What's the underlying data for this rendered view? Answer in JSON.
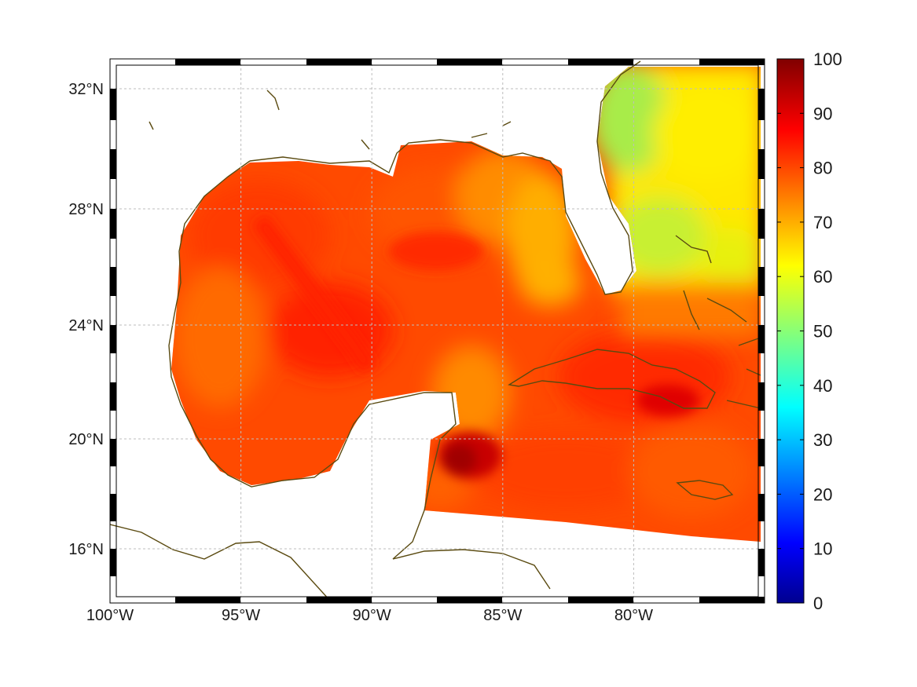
{
  "map": {
    "region": "Gulf of Mexico and western Caribbean",
    "lon_range": [
      -100,
      -75
    ],
    "lat_range": [
      14.2,
      33
    ],
    "lon_ticks": [
      {
        "value": -100,
        "label": "100°W"
      },
      {
        "value": -95,
        "label": "95°W"
      },
      {
        "value": -90,
        "label": "90°W"
      },
      {
        "value": -85,
        "label": "85°W"
      },
      {
        "value": -80,
        "label": "80°W"
      }
    ],
    "lat_ticks": [
      {
        "value": 32,
        "label": "32°N"
      },
      {
        "value": 28,
        "label": "28°N"
      },
      {
        "value": 24,
        "label": "24°N"
      },
      {
        "value": 20,
        "label": "20°N"
      },
      {
        "value": 16,
        "label": "16°N"
      }
    ],
    "grid": true,
    "coastline_color": "#5a4a10",
    "field_summary": [
      {
        "area": "Western and central Gulf of Mexico",
        "approx_value": 85
      },
      {
        "area": "Eastern Gulf / West Florida shelf",
        "approx_value": 72
      },
      {
        "area": "Yucatan Channel / Cayman Sea (max)",
        "approx_value": 97
      },
      {
        "area": "Caribbean south of Cuba",
        "approx_value": 84
      },
      {
        "area": "Atlantic east of Florida (north)",
        "approx_value": 62
      },
      {
        "area": "Atlantic east of Florida (south)",
        "approx_value": 58
      }
    ]
  },
  "colorbar": {
    "min": 0,
    "max": 100,
    "colormap": "jet",
    "ticks": [
      "0",
      "10",
      "20",
      "30",
      "40",
      "50",
      "60",
      "70",
      "80",
      "90",
      "100"
    ]
  }
}
